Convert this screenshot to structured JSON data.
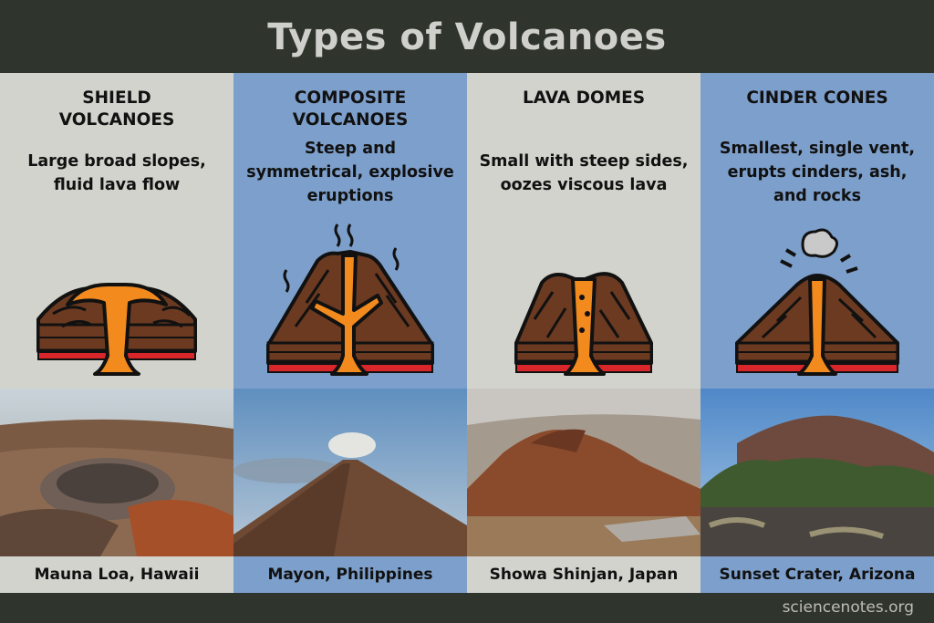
{
  "title": "Types of Volcanoes",
  "colors": {
    "gray_panel": "#d3d3cd",
    "blue_panel": "#7d9fcb",
    "background": "#2f342c",
    "lava": "#f28a1e",
    "rock": "#6b3a21",
    "base": "#d8262b"
  },
  "types": [
    {
      "name": "SHIELD\nVOLCANOES",
      "description": "Large broad slopes,\nfluid lava flow",
      "example": "Mauna Loa, Hawaii",
      "icon": "shield-volcano-icon"
    },
    {
      "name": "COMPOSITE\nVOLCANOES",
      "description": "Steep and\nsymmetrical, explosive\neruptions",
      "example": "Mayon, Philippines",
      "icon": "composite-volcano-icon"
    },
    {
      "name": "LAVA DOMES",
      "description": "Small with steep sides,\noozes viscous lava",
      "example": "Showa Shinjan, Japan",
      "icon": "lava-dome-icon"
    },
    {
      "name": "CINDER CONES",
      "description": "Smallest, single vent,\nerupts cinders, ash,\nand rocks",
      "example": "Sunset Crater, Arizona",
      "icon": "cinder-cone-icon"
    }
  ],
  "credit": "sciencenotes.org"
}
